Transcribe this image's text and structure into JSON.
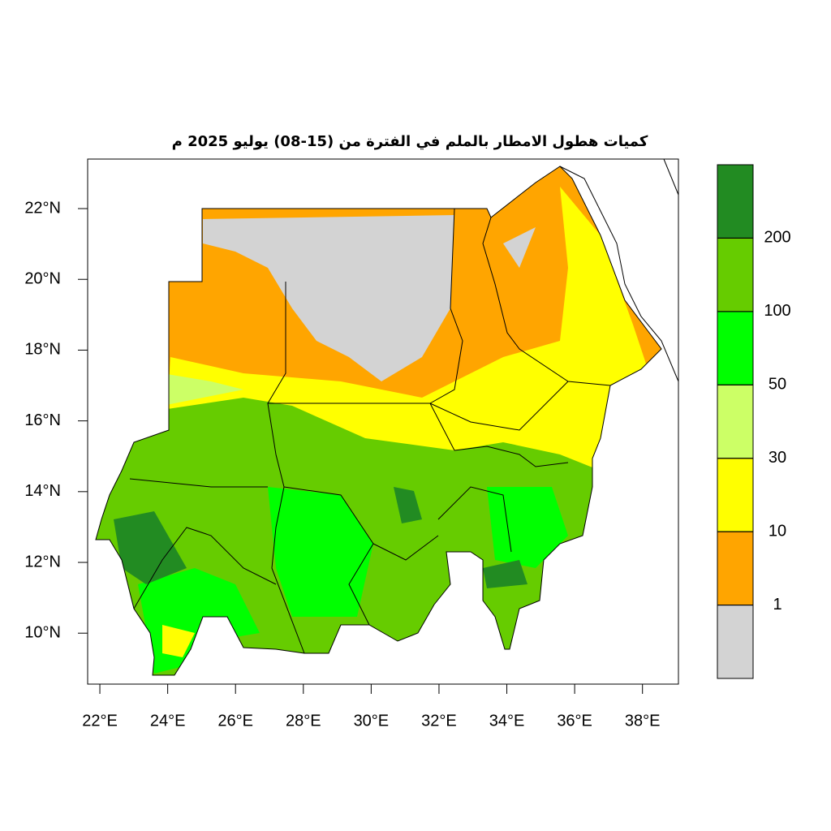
{
  "map": {
    "title": "كميات هطول الامطار بالملم في الفترة من (15-08) يوليو 2025 م",
    "xlim": [
      21.64,
      39.06
    ],
    "ylim": [
      8.56,
      23.4
    ],
    "xticks": [
      {
        "value": 22,
        "label": "22°E"
      },
      {
        "value": 24,
        "label": "24°E"
      },
      {
        "value": 26,
        "label": "26°E"
      },
      {
        "value": 28,
        "label": "28°E"
      },
      {
        "value": 30,
        "label": "30°E"
      },
      {
        "value": 32,
        "label": "32°E"
      },
      {
        "value": 34,
        "label": "34°E"
      },
      {
        "value": 36,
        "label": "36°E"
      },
      {
        "value": 38,
        "label": "38°E"
      }
    ],
    "yticks": [
      {
        "value": 10,
        "label": "10°N"
      },
      {
        "value": 12,
        "label": "12°N"
      },
      {
        "value": 14,
        "label": "14°N"
      },
      {
        "value": 16,
        "label": "16°N"
      },
      {
        "value": 18,
        "label": "18°N"
      },
      {
        "value": 20,
        "label": "20°N"
      },
      {
        "value": 22,
        "label": "22°N"
      }
    ],
    "legend": {
      "colors": [
        "#d3d3d3",
        "#ffa500",
        "#ffff00",
        "#ccff66",
        "#00ff00",
        "#66cc00",
        "#228b22"
      ],
      "breaks": [
        1,
        10,
        30,
        50,
        100,
        200
      ]
    }
  }
}
